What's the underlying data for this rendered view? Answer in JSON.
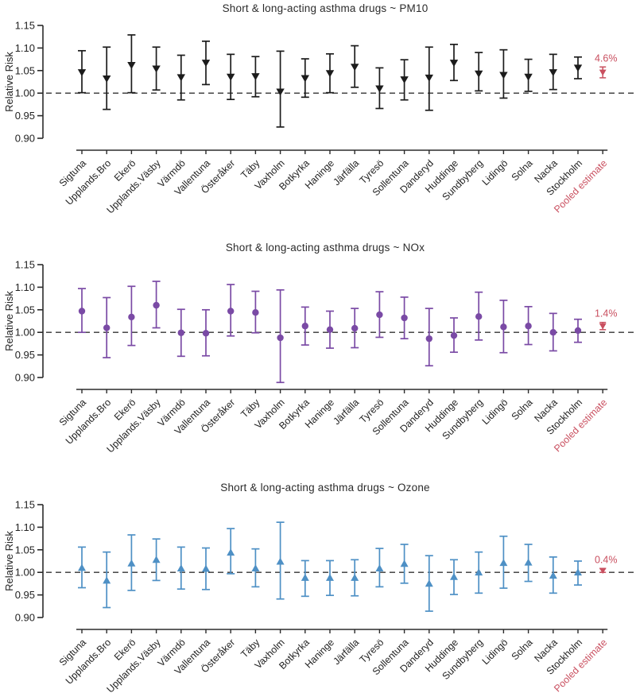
{
  "figure": {
    "y_axis": {
      "label": "Relative Risk",
      "min": 0.9,
      "max": 1.15,
      "ticks": [
        "1.15",
        "1.10",
        "1.05",
        "1.00",
        "0.95",
        "0.90"
      ],
      "reference_line": 1.0,
      "grid": false
    },
    "x_axis": {
      "pooled_category_label": "Pooled estimate"
    }
  },
  "colors": {
    "pm10": "#1c1c1c",
    "nox": "#7a4aa5",
    "ozone": "#4e90c5",
    "pooled": "#c94f5f",
    "axis": "#2b2b2b",
    "text": "#222222",
    "reference": "#333333"
  },
  "categories": [
    "Sigtuna",
    "Upplands.Bro",
    "Ekerö",
    "Upplands.Väsby",
    "Värmdö",
    "Vallentuna",
    "Österåker",
    "Täby",
    "Vaxholm",
    "Botkyrka",
    "Haninge",
    "Järfälla",
    "Tyresö",
    "Sollentuna",
    "Danderyd",
    "Huddinge",
    "Sundbyberg",
    "Lidingö",
    "Solna",
    "Nacka",
    "Stockholm"
  ],
  "chart_data": [
    {
      "type": "errorbar",
      "title": "Short & long-acting asthma drugs ~ PM10",
      "marker": "triangle-down",
      "color_key": "pm10",
      "ylabel": "Relative Risk",
      "ylim": [
        0.9,
        1.15
      ],
      "legend_position": "none",
      "points": [
        {
          "name": "Sigtuna",
          "est": 1.046,
          "lo": 1.001,
          "hi": 1.094
        },
        {
          "name": "Upplands.Bro",
          "est": 1.032,
          "lo": 0.964,
          "hi": 1.102
        },
        {
          "name": "Ekerö",
          "est": 1.062,
          "lo": 1.001,
          "hi": 1.129
        },
        {
          "name": "Upplands.Väsby",
          "est": 1.054,
          "lo": 1.007,
          "hi": 1.102
        },
        {
          "name": "Värmdö",
          "est": 1.035,
          "lo": 0.985,
          "hi": 1.084
        },
        {
          "name": "Vallentuna",
          "est": 1.067,
          "lo": 1.019,
          "hi": 1.115
        },
        {
          "name": "Österåker",
          "est": 1.036,
          "lo": 0.986,
          "hi": 1.086
        },
        {
          "name": "Täby",
          "est": 1.037,
          "lo": 0.992,
          "hi": 1.081
        },
        {
          "name": "Vaxholm",
          "est": 1.003,
          "lo": 0.925,
          "hi": 1.093
        },
        {
          "name": "Botkyrka",
          "est": 1.033,
          "lo": 0.991,
          "hi": 1.076
        },
        {
          "name": "Haninge",
          "est": 1.044,
          "lo": 1.001,
          "hi": 1.087
        },
        {
          "name": "Järfälla",
          "est": 1.058,
          "lo": 1.013,
          "hi": 1.105
        },
        {
          "name": "Tyresö",
          "est": 1.01,
          "lo": 0.966,
          "hi": 1.056
        },
        {
          "name": "Sollentuna",
          "est": 1.03,
          "lo": 0.985,
          "hi": 1.074
        },
        {
          "name": "Danderyd",
          "est": 1.034,
          "lo": 0.962,
          "hi": 1.102
        },
        {
          "name": "Huddinge",
          "est": 1.067,
          "lo": 1.028,
          "hi": 1.108
        },
        {
          "name": "Sundbyberg",
          "est": 1.043,
          "lo": 1.005,
          "hi": 1.09
        },
        {
          "name": "Lidingö",
          "est": 1.04,
          "lo": 0.989,
          "hi": 1.096
        },
        {
          "name": "Solna",
          "est": 1.036,
          "lo": 1.004,
          "hi": 1.075
        },
        {
          "name": "Nacka",
          "est": 1.046,
          "lo": 1.008,
          "hi": 1.086
        },
        {
          "name": "Stockholm",
          "est": 1.056,
          "lo": 1.032,
          "hi": 1.08
        }
      ],
      "pooled": {
        "label": "4.6%",
        "est": 1.046,
        "lo": 1.034,
        "hi": 1.058
      }
    },
    {
      "type": "errorbar",
      "title": "Short & long-acting asthma drugs ~ NOx",
      "marker": "circle",
      "color_key": "nox",
      "ylabel": "Relative Risk",
      "ylim": [
        0.9,
        1.15
      ],
      "legend_position": "none",
      "points": [
        {
          "name": "Sigtuna",
          "est": 1.047,
          "lo": 1.0,
          "hi": 1.097
        },
        {
          "name": "Upplands.Bro",
          "est": 1.01,
          "lo": 0.944,
          "hi": 1.077
        },
        {
          "name": "Ekerö",
          "est": 1.034,
          "lo": 0.971,
          "hi": 1.102
        },
        {
          "name": "Upplands.Väsby",
          "est": 1.06,
          "lo": 1.01,
          "hi": 1.113
        },
        {
          "name": "Värmdö",
          "est": 0.999,
          "lo": 0.947,
          "hi": 1.051
        },
        {
          "name": "Vallentuna",
          "est": 0.998,
          "lo": 0.948,
          "hi": 1.05
        },
        {
          "name": "Österåker",
          "est": 1.047,
          "lo": 0.992,
          "hi": 1.106
        },
        {
          "name": "Täby",
          "est": 1.044,
          "lo": 0.999,
          "hi": 1.091
        },
        {
          "name": "Vaxholm",
          "est": 0.988,
          "lo": 0.889,
          "hi": 1.094
        },
        {
          "name": "Botkyrka",
          "est": 1.014,
          "lo": 0.972,
          "hi": 1.056
        },
        {
          "name": "Haninge",
          "est": 1.006,
          "lo": 0.965,
          "hi": 1.047
        },
        {
          "name": "Järfälla",
          "est": 1.009,
          "lo": 0.966,
          "hi": 1.053
        },
        {
          "name": "Tyresö",
          "est": 1.039,
          "lo": 0.989,
          "hi": 1.09
        },
        {
          "name": "Sollentuna",
          "est": 1.032,
          "lo": 0.986,
          "hi": 1.078
        },
        {
          "name": "Danderyd",
          "est": 0.986,
          "lo": 0.926,
          "hi": 1.053
        },
        {
          "name": "Huddinge",
          "est": 0.993,
          "lo": 0.956,
          "hi": 1.032
        },
        {
          "name": "Sundbyberg",
          "est": 1.035,
          "lo": 0.983,
          "hi": 1.089
        },
        {
          "name": "Lidingö",
          "est": 1.012,
          "lo": 0.955,
          "hi": 1.071
        },
        {
          "name": "Solna",
          "est": 1.014,
          "lo": 0.973,
          "hi": 1.057
        },
        {
          "name": "Nacka",
          "est": 1.0,
          "lo": 0.959,
          "hi": 1.042
        },
        {
          "name": "Stockholm",
          "est": 1.004,
          "lo": 0.978,
          "hi": 1.029
        }
      ],
      "pooled": {
        "label": "1.4%",
        "est": 1.014,
        "lo": 1.006,
        "hi": 1.022
      }
    },
    {
      "type": "errorbar",
      "title": "Short & long-acting asthma drugs ~ Ozone",
      "marker": "triangle-up",
      "color_key": "ozone",
      "ylabel": "Relative Risk",
      "ylim": [
        0.9,
        1.15
      ],
      "legend_position": "none",
      "points": [
        {
          "name": "Sigtuna",
          "est": 1.01,
          "lo": 0.966,
          "hi": 1.056
        },
        {
          "name": "Upplands.Bro",
          "est": 0.982,
          "lo": 0.922,
          "hi": 1.045
        },
        {
          "name": "Ekerö",
          "est": 1.02,
          "lo": 0.96,
          "hi": 1.083
        },
        {
          "name": "Upplands.Väsby",
          "est": 1.028,
          "lo": 0.982,
          "hi": 1.074
        },
        {
          "name": "Värmdö",
          "est": 1.009,
          "lo": 0.963,
          "hi": 1.056
        },
        {
          "name": "Vallentuna",
          "est": 1.008,
          "lo": 0.962,
          "hi": 1.054
        },
        {
          "name": "Österåker",
          "est": 1.044,
          "lo": 0.997,
          "hi": 1.097
        },
        {
          "name": "Täby",
          "est": 1.009,
          "lo": 0.968,
          "hi": 1.052
        },
        {
          "name": "Vaxholm",
          "est": 1.024,
          "lo": 0.941,
          "hi": 1.111
        },
        {
          "name": "Botkyrka",
          "est": 0.988,
          "lo": 0.947,
          "hi": 1.026
        },
        {
          "name": "Haninge",
          "est": 0.988,
          "lo": 0.949,
          "hi": 1.026
        },
        {
          "name": "Järfälla",
          "est": 0.988,
          "lo": 0.948,
          "hi": 1.028
        },
        {
          "name": "Tyresö",
          "est": 1.009,
          "lo": 0.968,
          "hi": 1.053
        },
        {
          "name": "Sollentuna",
          "est": 1.019,
          "lo": 0.976,
          "hi": 1.062
        },
        {
          "name": "Danderyd",
          "est": 0.975,
          "lo": 0.914,
          "hi": 1.037
        },
        {
          "name": "Huddinge",
          "est": 0.99,
          "lo": 0.951,
          "hi": 1.028
        },
        {
          "name": "Sundbyberg",
          "est": 1.0,
          "lo": 0.954,
          "hi": 1.045
        },
        {
          "name": "Lidingö",
          "est": 1.021,
          "lo": 0.965,
          "hi": 1.08
        },
        {
          "name": "Solna",
          "est": 1.022,
          "lo": 0.98,
          "hi": 1.062
        },
        {
          "name": "Nacka",
          "est": 0.993,
          "lo": 0.954,
          "hi": 1.034
        },
        {
          "name": "Stockholm",
          "est": 1.0,
          "lo": 0.972,
          "hi": 1.025
        }
      ],
      "pooled": {
        "label": "0.4%",
        "est": 1.004,
        "lo": 1.0,
        "hi": 1.008
      }
    }
  ]
}
